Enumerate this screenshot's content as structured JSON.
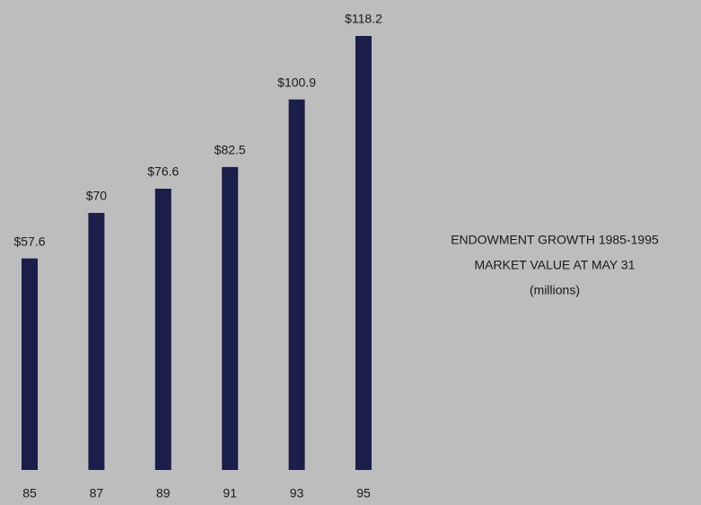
{
  "chart_data": {
    "type": "bar",
    "title": "ENDOWMENT GROWTH 1985-1995",
    "subtitle": "MARKET VALUE AT MAY 31",
    "unit_label": "(millions)",
    "categories": [
      "85",
      "87",
      "89",
      "91",
      "93",
      "95"
    ],
    "values": [
      57.6,
      70,
      76.6,
      82.5,
      100.9,
      118.2
    ],
    "value_labels": [
      "$57.6",
      "$70",
      "$76.6",
      "$82.5",
      "$100.9",
      "$118.2"
    ],
    "color": "#1b1e48"
  }
}
